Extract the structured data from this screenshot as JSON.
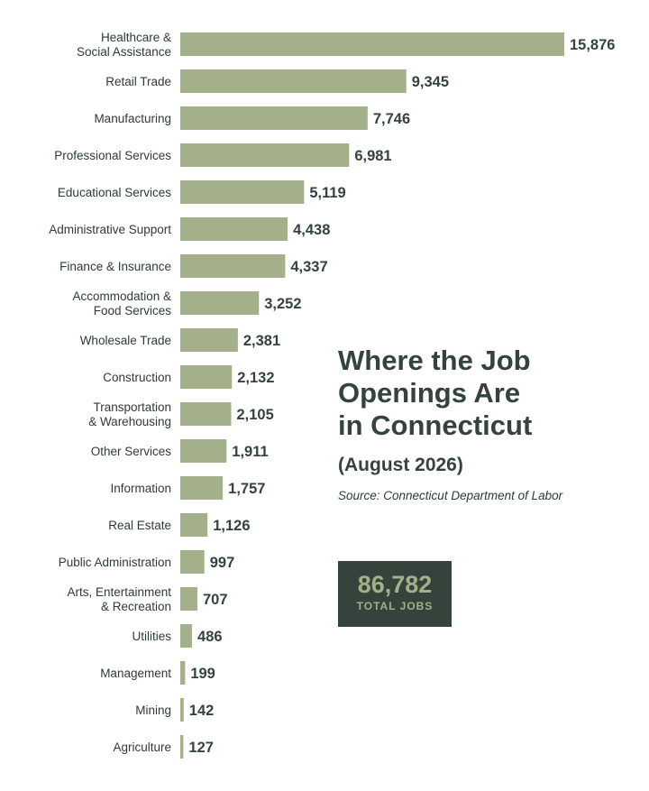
{
  "colors": {
    "bar": "#a3b08a",
    "text_dark": "#34433c",
    "box_bg": "#34433c",
    "box_text": "#a3b08a"
  },
  "title": "Where the Job\nOpenings Are\nin Connecticut",
  "subtitle": "(August 2026)",
  "source": "Source: Connecticut Department of Labor",
  "total": {
    "value": "86,782",
    "label": "TOTAL JOBS"
  },
  "chart_data": {
    "type": "bar",
    "orientation": "horizontal",
    "categories": [
      "Healthcare &\nSocial Assistance",
      "Retail Trade",
      "Manufacturing",
      "Professional Services",
      "Educational Services",
      "Administrative Support",
      "Finance & Insurance",
      "Accommodation &\nFood Services",
      "Wholesale Trade",
      "Construction",
      "Transportation\n& Warehousing",
      "Other Services",
      "Information",
      "Real Estate",
      "Public Administration",
      "Arts, Entertainment\n& Recreation",
      "Utilities",
      "Management",
      "Mining",
      "Agriculture"
    ],
    "values": [
      15876,
      9345,
      7746,
      6981,
      5119,
      4438,
      4337,
      3252,
      2381,
      2132,
      2105,
      1911,
      1757,
      1126,
      997,
      707,
      486,
      199,
      142,
      127
    ],
    "value_labels": [
      "15,876",
      "9,345",
      "7,746",
      "6,981",
      "5,119",
      "4,438",
      "4,337",
      "3,252",
      "2,381",
      "2,132",
      "2,105",
      "1,911",
      "1,757",
      "1,126",
      "997",
      "707",
      "486",
      "199",
      "142",
      "127"
    ],
    "grid": false
  }
}
